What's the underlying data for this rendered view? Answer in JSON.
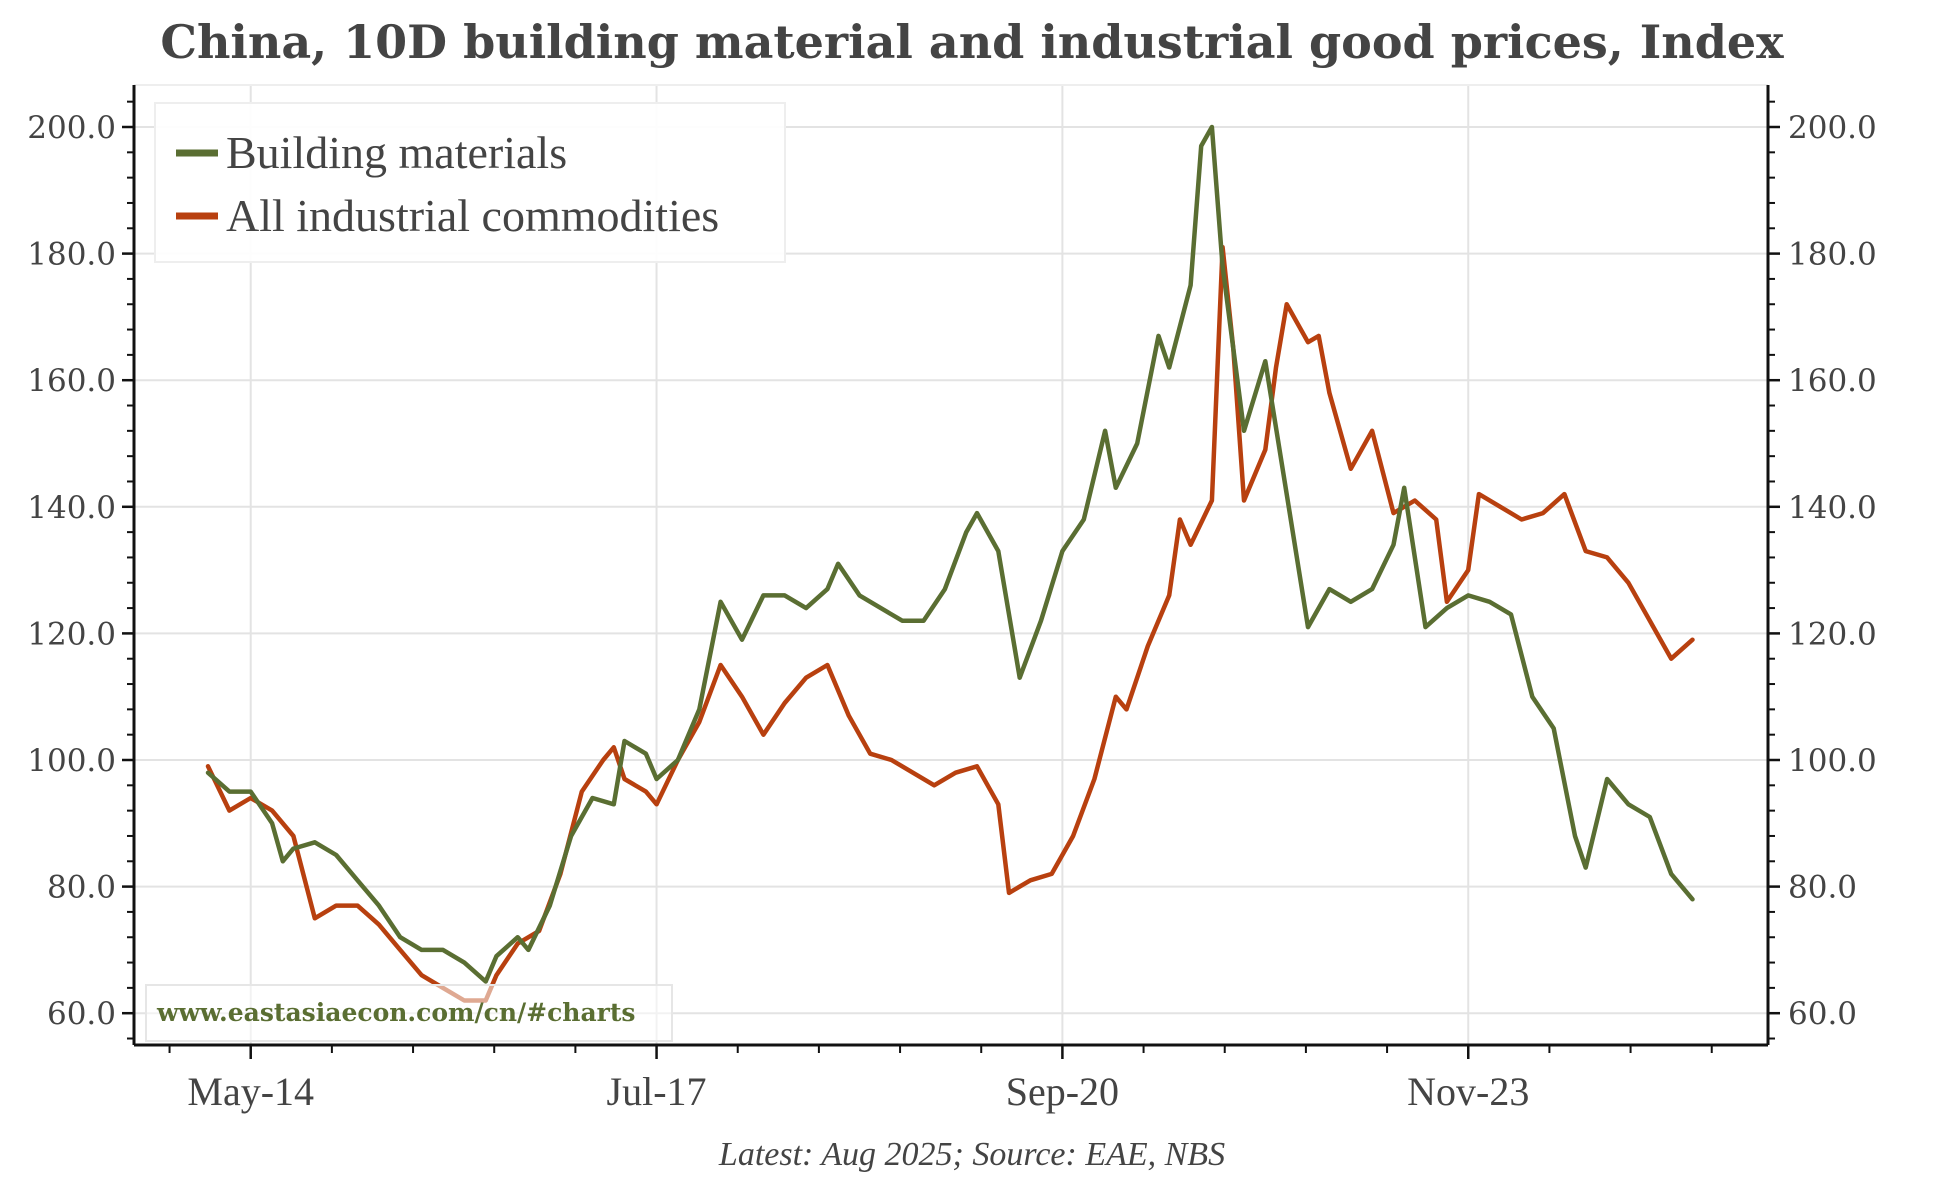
{
  "chart_data": {
    "type": "line",
    "title": "China, 10D building material and industrial good prices, Index",
    "footer": "Latest: Aug 2025; Source: EAE, NBS",
    "watermark": "www.eastasiaecon.com/cn/#charts",
    "xlabel": "",
    "ylabel": "",
    "ylim": [
      55,
      208
    ],
    "yticks": [
      60,
      80,
      100,
      120,
      140,
      160,
      180,
      200
    ],
    "ytick_labels": [
      "60.0",
      "80.0",
      "100.0",
      "120.0",
      "140.0",
      "160.0",
      "180.0",
      "200.0"
    ],
    "y_axis_right_mirrors_left": true,
    "x_unit": "months since Jan-2014",
    "xlim": [
      -7,
      147
    ],
    "xticks_major": [
      4,
      42,
      80,
      118
    ],
    "xtick_labels": [
      "May-14",
      "Jul-17",
      "Sep-20",
      "Nov-23"
    ],
    "grid": true,
    "legend_position": "top-left",
    "colors": {
      "building": "#5a6e32",
      "industrial": "#b8400f",
      "text": "#444444"
    },
    "series": [
      {
        "name": "Building materials",
        "color": "#5a6e32",
        "x": [
          0,
          2,
          4,
          6,
          7,
          8,
          10,
          12,
          14,
          16,
          18,
          20,
          22,
          24,
          26,
          27,
          29,
          30,
          32,
          34,
          36,
          38,
          39,
          41,
          42,
          44,
          46,
          48,
          50,
          52,
          54,
          56,
          58,
          59,
          61,
          63,
          65,
          67,
          69,
          71,
          72,
          74,
          76,
          78,
          80,
          82,
          84,
          85,
          87,
          89,
          90,
          92,
          93,
          94,
          95,
          97,
          99,
          101,
          103,
          105,
          107,
          109,
          111,
          112,
          114,
          116,
          118,
          120,
          122,
          124,
          126,
          128,
          129,
          131,
          133,
          135,
          137,
          139
        ],
        "values": [
          98,
          95,
          95,
          90,
          84,
          86,
          87,
          85,
          81,
          77,
          72,
          70,
          70,
          68,
          65,
          69,
          72,
          70,
          77,
          88,
          94,
          93,
          103,
          101,
          97,
          100,
          108,
          125,
          119,
          126,
          126,
          124,
          127,
          131,
          126,
          124,
          122,
          122,
          127,
          136,
          139,
          133,
          113,
          122,
          133,
          138,
          152,
          143,
          150,
          167,
          162,
          175,
          197,
          200,
          178,
          152,
          163,
          142,
          121,
          127,
          125,
          127,
          134,
          143,
          121,
          124,
          126,
          125,
          123,
          110,
          105,
          88,
          83,
          97,
          93,
          91,
          82,
          78
        ]
      },
      {
        "name": "All industrial commodities",
        "color": "#b8400f",
        "x": [
          0,
          2,
          4,
          6,
          8,
          10,
          12,
          14,
          16,
          18,
          20,
          22,
          24,
          26,
          27,
          29,
          31,
          33,
          35,
          37,
          38,
          39,
          41,
          42,
          44,
          46,
          48,
          50,
          52,
          54,
          56,
          58,
          60,
          62,
          64,
          66,
          68,
          70,
          72,
          74,
          75,
          77,
          79,
          81,
          83,
          85,
          86,
          88,
          90,
          91,
          92,
          94,
          95,
          96,
          97,
          99,
          100,
          101,
          103,
          104,
          105,
          107,
          109,
          111,
          113,
          115,
          116,
          118,
          119,
          121,
          123,
          125,
          127,
          129,
          131,
          133,
          135,
          137,
          139
        ],
        "values": [
          99,
          92,
          94,
          92,
          88,
          75,
          77,
          77,
          74,
          70,
          66,
          64,
          62,
          62,
          66,
          71,
          73,
          82,
          95,
          100,
          102,
          97,
          95,
          93,
          100,
          106,
          115,
          110,
          104,
          109,
          113,
          115,
          107,
          101,
          100,
          98,
          96,
          98,
          99,
          93,
          79,
          81,
          82,
          88,
          97,
          110,
          108,
          118,
          126,
          138,
          134,
          141,
          181,
          165,
          141,
          149,
          162,
          172,
          166,
          167,
          158,
          146,
          152,
          139,
          141,
          138,
          125,
          130,
          142,
          140,
          138,
          139,
          142,
          133,
          132,
          128,
          122,
          116,
          119
        ]
      }
    ]
  }
}
